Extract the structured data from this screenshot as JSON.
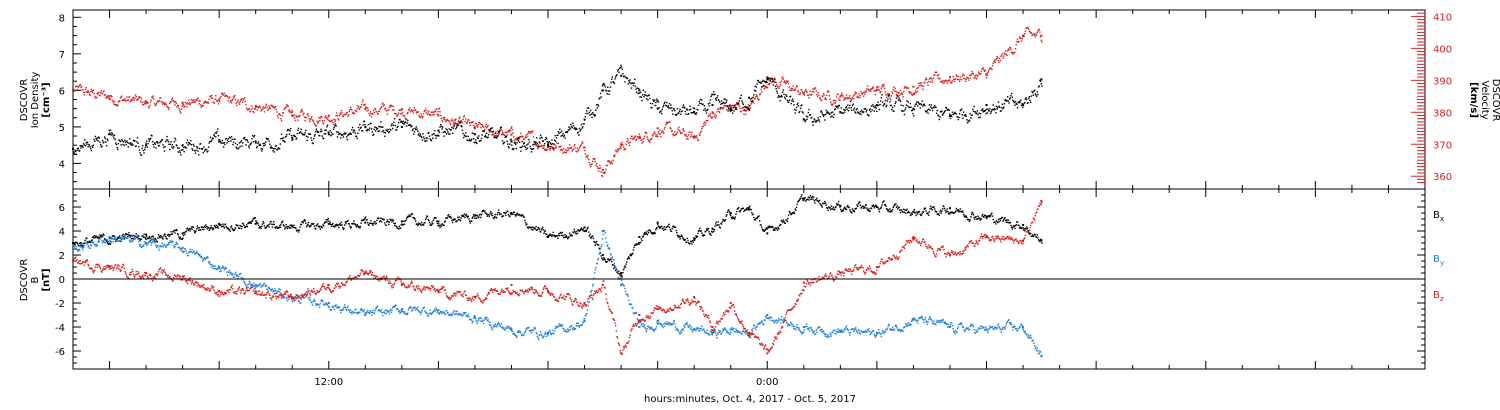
{
  "chart_data": [
    {
      "type": "scatter",
      "panel": "top",
      "xlabel": "hours:minutes, Oct.  4, 2017 - Oct.  5, 2017",
      "x_units": "hours since 2017-10-04 00:00",
      "xlim": [
        5.0,
        42.0
      ],
      "x_tick_labels": [
        {
          "x": 12,
          "label": "12:00"
        },
        {
          "x": 24,
          "label": "0:00"
        }
      ],
      "left_axis": {
        "label_lines": [
          "DSCOVR",
          "Ion Density",
          "[cm⁻³]"
        ],
        "ylim": [
          3.3,
          8.2
        ],
        "ticks": [
          4,
          5,
          6,
          7,
          8
        ],
        "color": "#000000"
      },
      "right_axis": {
        "label_lines": [
          "DSCOVR",
          "Velocity",
          "[km/s]"
        ],
        "ylim": [
          356,
          412
        ],
        "ticks": [
          360,
          370,
          380,
          390,
          400,
          410
        ],
        "color": "#d42020"
      },
      "series": [
        {
          "axis": "left",
          "color": "#000000",
          "x": [
            5.0,
            6.0,
            7.0,
            8.0,
            9.0,
            10.0,
            11.0,
            12.0,
            13.0,
            14.0,
            15.0,
            16.0,
            17.0,
            18.0,
            19.0,
            19.5,
            20.0,
            20.5,
            21.0,
            22.0,
            22.5,
            23.0,
            23.5,
            24.0,
            25.0,
            26.0,
            27.0,
            28.0,
            29.0,
            30.0,
            31.0,
            31.5
          ],
          "y": [
            4.4,
            4.8,
            4.5,
            4.5,
            4.6,
            4.6,
            4.7,
            4.8,
            5.0,
            5.0,
            4.9,
            4.8,
            4.6,
            4.5,
            5.2,
            6.0,
            6.4,
            6.0,
            5.5,
            5.4,
            5.6,
            5.5,
            5.8,
            6.3,
            5.2,
            5.4,
            5.6,
            5.5,
            5.3,
            5.6,
            5.6,
            6.3
          ]
        },
        {
          "axis": "right",
          "color": "#d42020",
          "x": [
            5.0,
            6.0,
            7.0,
            8.0,
            9.0,
            10.0,
            11.0,
            12.0,
            13.0,
            14.0,
            15.0,
            16.0,
            17.0,
            18.0,
            19.0,
            19.5,
            20.0,
            20.5,
            21.0,
            22.0,
            22.5,
            23.0,
            23.5,
            24.0,
            25.0,
            26.0,
            27.0,
            28.0,
            29.0,
            30.0,
            31.0,
            31.5
          ],
          "y": [
            387,
            385,
            383,
            383,
            384,
            382,
            379,
            379,
            381,
            381,
            379,
            375,
            373,
            370,
            369,
            362,
            370,
            372,
            375,
            372,
            380,
            382,
            381,
            391,
            386,
            385,
            387,
            388,
            391,
            392,
            404,
            404
          ]
        }
      ]
    },
    {
      "type": "scatter",
      "panel": "bottom",
      "xlim": [
        5.0,
        42.0
      ],
      "y_axis": {
        "label_lines": [
          "DSCOVR",
          "B",
          "[nT]"
        ],
        "ylim": [
          -7.5,
          7.5
        ],
        "ticks": [
          -6,
          -4,
          -2,
          0,
          2,
          4,
          6
        ],
        "zero_line": true
      },
      "series": [
        {
          "name": "Bx",
          "color": "#000000",
          "x": [
            5.0,
            6.0,
            7.0,
            8.0,
            9.0,
            10.0,
            11.0,
            12.0,
            13.0,
            14.0,
            15.0,
            16.0,
            17.0,
            18.0,
            19.0,
            19.5,
            20.0,
            20.5,
            21.0,
            22.0,
            22.5,
            23.0,
            23.5,
            24.0,
            25.0,
            26.0,
            27.0,
            28.0,
            29.0,
            30.0,
            31.0,
            31.5
          ],
          "y": [
            3.0,
            3.4,
            3.7,
            3.8,
            4.6,
            4.6,
            4.4,
            4.6,
            4.7,
            4.8,
            4.8,
            5.3,
            5.5,
            3.5,
            4.3,
            2.0,
            0.5,
            3.5,
            4.7,
            3.4,
            4.2,
            5.5,
            5.8,
            3.8,
            6.7,
            6.1,
            6.0,
            5.6,
            5.9,
            5.2,
            4.5,
            3.2
          ]
        },
        {
          "name": "By",
          "color": "#1f7fd6",
          "x": [
            5.0,
            6.0,
            7.0,
            8.0,
            9.0,
            10.0,
            11.0,
            12.0,
            13.0,
            14.0,
            15.0,
            16.0,
            17.0,
            18.0,
            19.0,
            19.5,
            20.0,
            20.5,
            21.0,
            22.0,
            22.5,
            23.0,
            23.5,
            24.0,
            25.0,
            26.0,
            27.0,
            28.0,
            29.0,
            30.0,
            31.0,
            31.5
          ],
          "y": [
            2.5,
            3.5,
            3.0,
            2.6,
            1.0,
            -0.5,
            -1.5,
            -2.0,
            -3.0,
            -2.5,
            -2.6,
            -3.2,
            -4.2,
            -4.5,
            -3.5,
            4.0,
            -0.5,
            -4.0,
            -3.5,
            -4.2,
            -4.5,
            -4.2,
            -4.5,
            -3.0,
            -4.0,
            -4.3,
            -4.5,
            -3.3,
            -4.0,
            -4.2,
            -4.0,
            -6.4
          ]
        },
        {
          "name": "Bz",
          "color": "#d42020",
          "x": [
            5.0,
            6.0,
            7.0,
            8.0,
            9.0,
            10.0,
            11.0,
            12.0,
            13.0,
            14.0,
            15.0,
            16.0,
            17.0,
            18.0,
            19.0,
            19.5,
            20.0,
            20.5,
            21.0,
            22.0,
            22.5,
            23.0,
            23.5,
            24.0,
            25.0,
            26.0,
            27.0,
            28.0,
            29.0,
            30.0,
            31.0,
            31.5
          ],
          "y": [
            1.5,
            1.0,
            0.5,
            0.2,
            -1.0,
            -1.2,
            -1.5,
            -0.5,
            0.5,
            -0.5,
            -1.0,
            -1.5,
            -0.5,
            -1.0,
            -2.0,
            -0.5,
            -6.2,
            -3.0,
            -2.5,
            -1.5,
            -4.0,
            -2.0,
            -4.5,
            -6.2,
            -0.3,
            0.5,
            1.0,
            3.5,
            2.0,
            3.5,
            3.2,
            6.5
          ]
        }
      ],
      "legend": {
        "placement": "right",
        "entries": [
          {
            "text": "B",
            "sub": "x",
            "color": "#000000"
          },
          {
            "text": "B",
            "sub": "y",
            "color": "#1f7fd6"
          },
          {
            "text": "B",
            "sub": "z",
            "color": "#d42020"
          }
        ]
      }
    }
  ],
  "figure": {
    "xlabel": "hours:minutes, Oct.  4, 2017 - Oct.  5, 2017"
  }
}
